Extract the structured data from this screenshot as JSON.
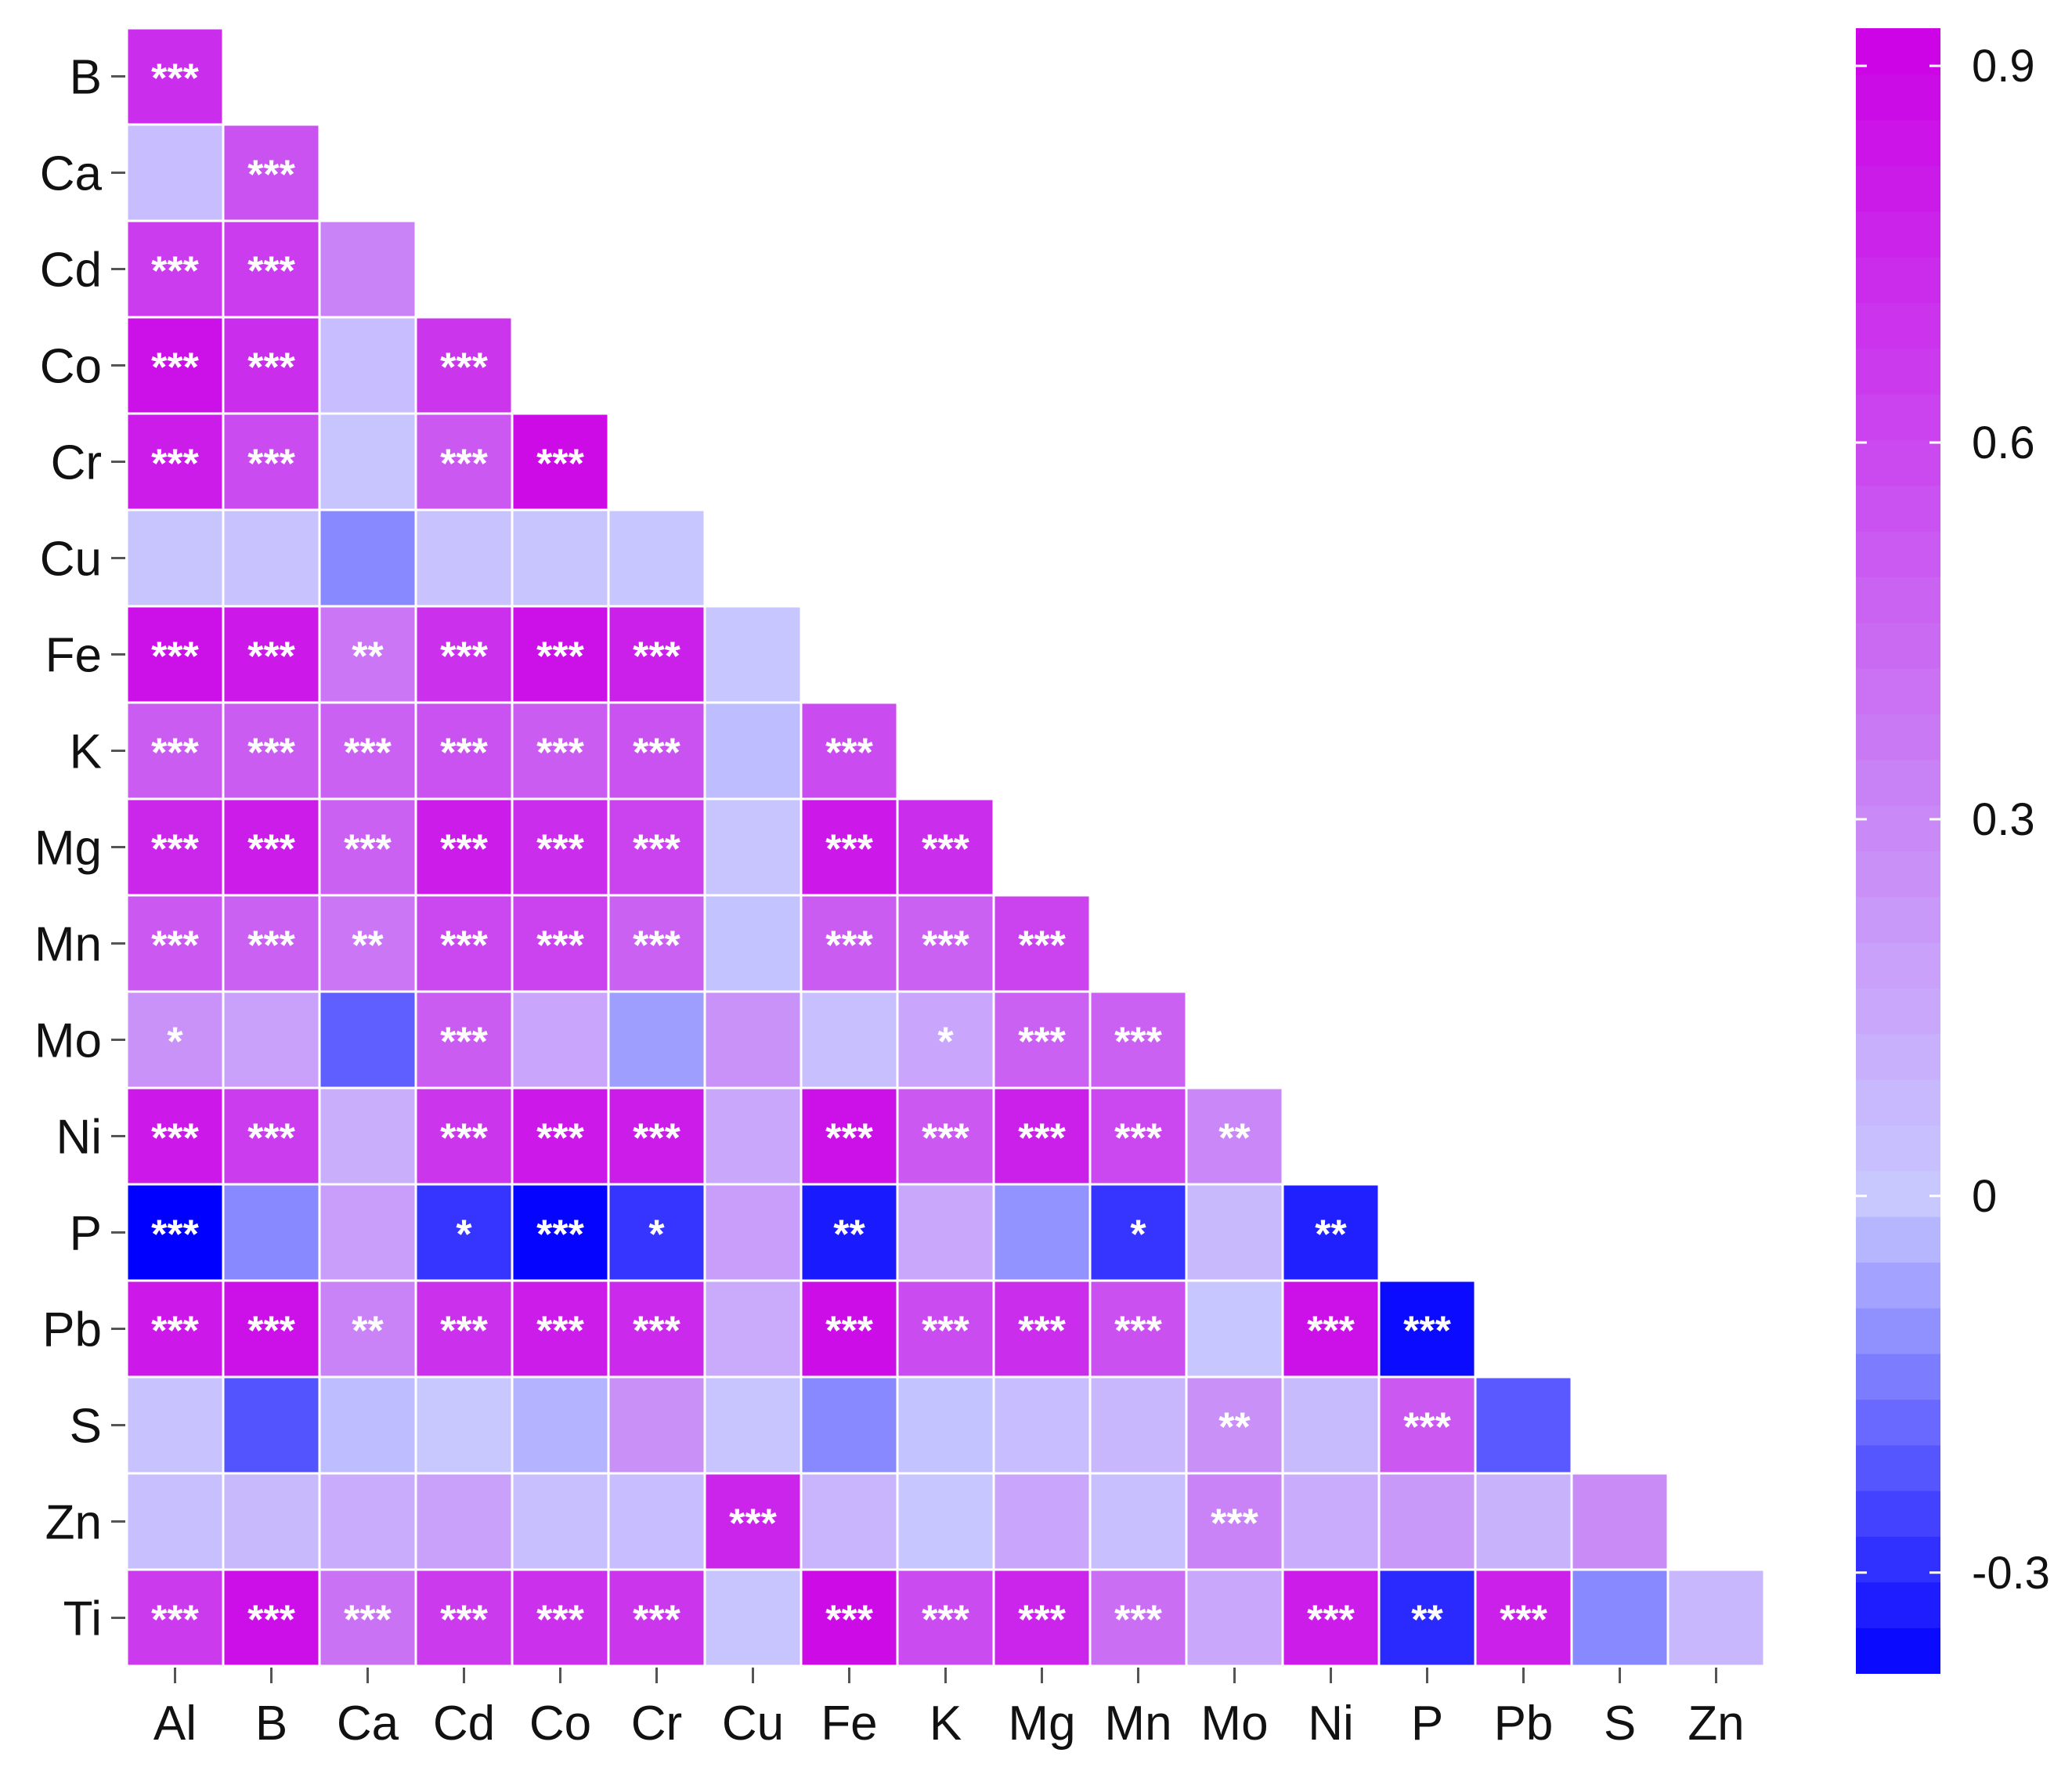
{
  "chart_data": {
    "type": "heatmap",
    "title": "",
    "xlabel": "",
    "ylabel": "",
    "x_categories": [
      "Al",
      "B",
      "Ca",
      "Cd",
      "Co",
      "Cr",
      "Cu",
      "Fe",
      "K",
      "Mg",
      "Mn",
      "Mo",
      "Ni",
      "P",
      "Pb",
      "S",
      "Zn"
    ],
    "y_categories": [
      "B",
      "Ca",
      "Cd",
      "Co",
      "Cr",
      "Cu",
      "Fe",
      "K",
      "Mg",
      "Mn",
      "Mo",
      "Ni",
      "P",
      "Pb",
      "S",
      "Zn",
      "Ti"
    ],
    "lower_triangle": true,
    "values": [
      [
        0.72
      ],
      [
        0.05,
        0.55
      ],
      [
        0.65,
        0.65,
        0.32
      ],
      [
        0.85,
        0.72,
        0.05,
        0.68
      ],
      [
        0.8,
        0.58,
        0.02,
        0.52,
        0.88
      ],
      [
        0.02,
        0.03,
        -0.12,
        0.03,
        0.02,
        0.01
      ],
      [
        0.85,
        0.82,
        0.38,
        0.7,
        0.85,
        0.78,
        0.01
      ],
      [
        0.5,
        0.5,
        0.48,
        0.55,
        0.5,
        0.55,
        -0.02,
        0.58
      ],
      [
        0.75,
        0.8,
        0.48,
        0.8,
        0.72,
        0.62,
        0.02,
        0.82,
        0.72
      ],
      [
        0.52,
        0.48,
        0.38,
        0.6,
        0.62,
        0.48,
        -0.01,
        0.5,
        0.48,
        0.62
      ],
      [
        0.25,
        0.18,
        -0.2,
        0.5,
        0.16,
        -0.08,
        0.25,
        0.04,
        0.16,
        0.48,
        0.48
      ],
      [
        0.82,
        0.65,
        0.12,
        0.68,
        0.82,
        0.8,
        0.15,
        0.85,
        0.52,
        0.78,
        0.6,
        0.3
      ],
      [
        -0.38,
        -0.12,
        0.2,
        -0.28,
        -0.37,
        -0.28,
        0.2,
        -0.33,
        0.15,
        -0.1,
        -0.28,
        0.07,
        -0.32
      ],
      [
        0.82,
        0.85,
        0.32,
        0.7,
        0.8,
        0.74,
        0.14,
        0.87,
        0.58,
        0.72,
        0.56,
        0.01,
        0.85,
        -0.36
      ],
      [
        0.03,
        -0.22,
        -0.02,
        0.0,
        -0.04,
        0.26,
        0.02,
        -0.12,
        -0.01,
        0.05,
        0.08,
        0.26,
        0.06,
        0.52,
        -0.21
      ],
      [
        0.04,
        0.07,
        0.13,
        0.18,
        0.04,
        0.05,
        0.76,
        0.09,
        0.01,
        0.16,
        0.04,
        0.32,
        0.13,
        0.22,
        0.1,
        0.28
      ],
      [
        0.66,
        0.86,
        0.4,
        0.66,
        0.7,
        0.68,
        0.02,
        0.88,
        0.58,
        0.76,
        0.42,
        0.15,
        0.8,
        -0.3,
        0.78,
        -0.12,
        0.08
      ]
    ],
    "significance": [
      [
        "***"
      ],
      [
        "",
        "***"
      ],
      [
        "***",
        "***",
        ""
      ],
      [
        "***",
        "***",
        "",
        "***"
      ],
      [
        "***",
        "***",
        "",
        "***",
        "***"
      ],
      [
        "",
        "",
        "",
        "",
        "",
        ""
      ],
      [
        "***",
        "***",
        "**",
        "***",
        "***",
        "***",
        ""
      ],
      [
        "***",
        "***",
        "***",
        "***",
        "***",
        "***",
        "",
        "***"
      ],
      [
        "***",
        "***",
        "***",
        "***",
        "***",
        "***",
        "",
        "***",
        "***"
      ],
      [
        "***",
        "***",
        "**",
        "***",
        "***",
        "***",
        "",
        "***",
        "***",
        "***"
      ],
      [
        "*",
        "",
        "",
        "***",
        "",
        "",
        "",
        "",
        "*",
        "***",
        "***"
      ],
      [
        "***",
        "***",
        "",
        "***",
        "***",
        "***",
        "",
        "***",
        "***",
        "***",
        "***",
        "**"
      ],
      [
        "***",
        "",
        "",
        "*",
        "***",
        "*",
        "",
        "**",
        "",
        "",
        "*",
        "",
        "**"
      ],
      [
        "***",
        "***",
        "**",
        "***",
        "***",
        "***",
        "",
        "***",
        "***",
        "***",
        "***",
        "",
        "***",
        "***"
      ],
      [
        "",
        "",
        "",
        "",
        "",
        "",
        "",
        "",
        "",
        "",
        "",
        "**",
        "",
        "***",
        ""
      ],
      [
        "",
        "",
        "",
        "",
        "",
        "",
        "***",
        "",
        "",
        "",
        "",
        "***",
        "",
        "",
        "",
        ""
      ],
      [
        "***",
        "***",
        "***",
        "***",
        "***",
        "***",
        "",
        "***",
        "***",
        "***",
        "***",
        "",
        "***",
        "**",
        "***",
        "",
        ""
      ]
    ],
    "colorbar": {
      "ticks": [
        0.9,
        0.6,
        0.3,
        0,
        -0.3
      ],
      "tick_labels": [
        "0.9",
        "0.6",
        "0.3",
        "0",
        "-0.3"
      ],
      "range": [
        -0.38,
        0.93
      ]
    },
    "colors": {
      "negative_end": "#0000ff",
      "zero": "#c8c8ff",
      "positive_end": "#cc00e6",
      "grid_line": "#ffffff",
      "significance_text": "#ffffff"
    }
  }
}
